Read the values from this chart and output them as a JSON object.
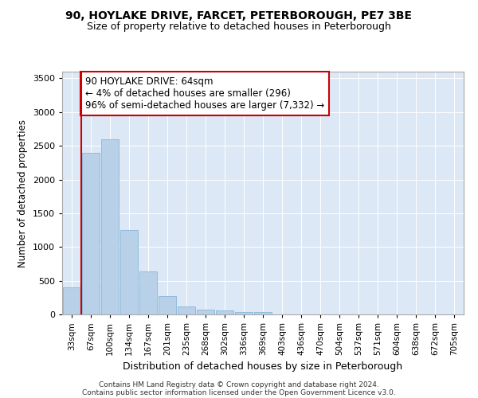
{
  "title_line1": "90, HOYLAKE DRIVE, FARCET, PETERBOROUGH, PE7 3BE",
  "title_line2": "Size of property relative to detached houses in Peterborough",
  "xlabel": "Distribution of detached houses by size in Peterborough",
  "ylabel": "Number of detached properties",
  "categories": [
    "33sqm",
    "67sqm",
    "100sqm",
    "134sqm",
    "167sqm",
    "201sqm",
    "235sqm",
    "268sqm",
    "302sqm",
    "336sqm",
    "369sqm",
    "403sqm",
    "436sqm",
    "470sqm",
    "504sqm",
    "537sqm",
    "571sqm",
    "604sqm",
    "638sqm",
    "672sqm",
    "705sqm"
  ],
  "values": [
    400,
    2400,
    2600,
    1250,
    640,
    270,
    115,
    65,
    55,
    35,
    35,
    0,
    0,
    0,
    0,
    0,
    0,
    0,
    0,
    0,
    0
  ],
  "bar_color": "#b8d0e8",
  "bar_edge_color": "#7aafd4",
  "annotation_text": "90 HOYLAKE DRIVE: 64sqm\n← 4% of detached houses are smaller (296)\n96% of semi-detached houses are larger (7,332) →",
  "annotation_box_color": "#ffffff",
  "annotation_box_edge_color": "#cc0000",
  "vline_color": "#cc0000",
  "vline_x": 0.49,
  "ylim": [
    0,
    3600
  ],
  "yticks": [
    0,
    500,
    1000,
    1500,
    2000,
    2500,
    3000,
    3500
  ],
  "plot_bg_color": "#dce8f5",
  "footer_line1": "Contains HM Land Registry data © Crown copyright and database right 2024.",
  "footer_line2": "Contains public sector information licensed under the Open Government Licence v3.0.",
  "title_fontsize": 10,
  "subtitle_fontsize": 9
}
